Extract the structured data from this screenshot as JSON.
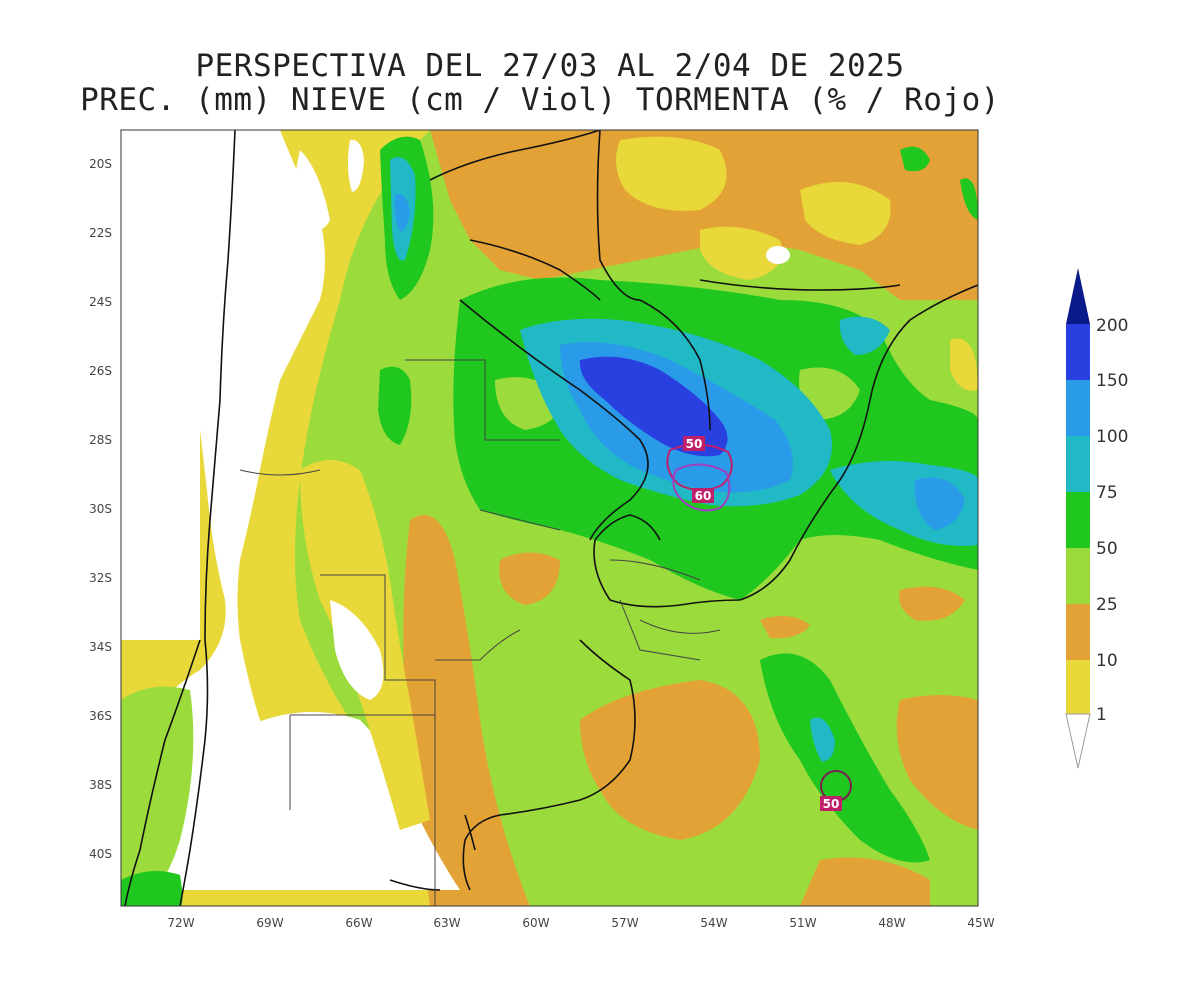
{
  "title": {
    "line1": "PERSPECTIVA DEL 27/03 AL 2/04 DE 2025",
    "line2": "PREC. (mm) NIEVE (cm / Viol) TORMENTA (% / Rojo)"
  },
  "axes": {
    "lat_labels": [
      "20S",
      "22S",
      "24S",
      "26S",
      "28S",
      "30S",
      "32S",
      "34S",
      "36S",
      "38S",
      "40S"
    ],
    "lon_labels": [
      "72W",
      "69W",
      "66W",
      "63W",
      "60W",
      "57W",
      "54W",
      "51W",
      "48W",
      "45W"
    ]
  },
  "colorbar": {
    "levels": [
      "200",
      "150",
      "100",
      "75",
      "50",
      "25",
      "10",
      "1"
    ],
    "colors": {
      "c1_10": "#e8d83a",
      "c10_25": "#e3a235",
      "c25_50": "#9bdc3c",
      "c50_75": "#1fc71f",
      "c75_100": "#21b9c6",
      "c100_150": "#2a9be8",
      "c150_200": "#2a3fe0",
      "c200p": "#0b1a8a"
    }
  },
  "storm_labels": [
    "50",
    "60",
    "50"
  ],
  "colors": {
    "snow_contour": "#a040c0",
    "storm_contour": "#c0206a",
    "border": "#111111"
  }
}
